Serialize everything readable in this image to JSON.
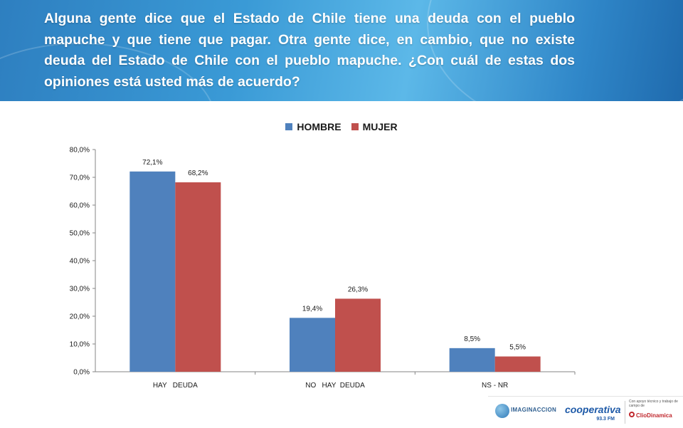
{
  "header": {
    "question": "Alguna gente dice que el Estado de Chile tiene una deuda con el pueblo mapuche y que tiene que pagar. Otra gente dice, en cambio, que no existe deuda del Estado de Chile con el pueblo mapuche. ¿Con cuál de estas dos opiniones está usted más de acuerdo?"
  },
  "colors": {
    "hombre": "#4f81bd",
    "mujer": "#c0504d",
    "header_blue": "#2f86c8"
  },
  "chart_data": {
    "type": "bar",
    "categories": [
      "HAY   DEUDA",
      "NO   HAY  DEUDA",
      "NS - NR"
    ],
    "series": [
      {
        "name": "HOMBRE",
        "values": [
          72.1,
          19.4,
          8.5
        ],
        "labels": [
          "72,1%",
          "19,4%",
          "8,5%"
        ]
      },
      {
        "name": "MUJER",
        "values": [
          68.2,
          26.3,
          5.5
        ],
        "labels": [
          "68,2%",
          "26,3%",
          "5,5%"
        ]
      }
    ],
    "ylim": [
      0,
      80
    ],
    "yticks": [
      "0,0%",
      "10,0%",
      "20,0%",
      "30,0%",
      "40,0%",
      "50,0%",
      "60,0%",
      "70,0%",
      "80,0%"
    ],
    "title": "",
    "xlabel": "",
    "ylabel": "",
    "legend_position": "top",
    "grid": false
  },
  "footer": {
    "logo1_text": "IMAGINACCION",
    "logo2_text": "cooperativa",
    "logo2_sub": "93.3 FM",
    "logo3_small": "Con apoyo técnico y trabajo de campo de",
    "logo3_text": "ClioDinamica"
  }
}
